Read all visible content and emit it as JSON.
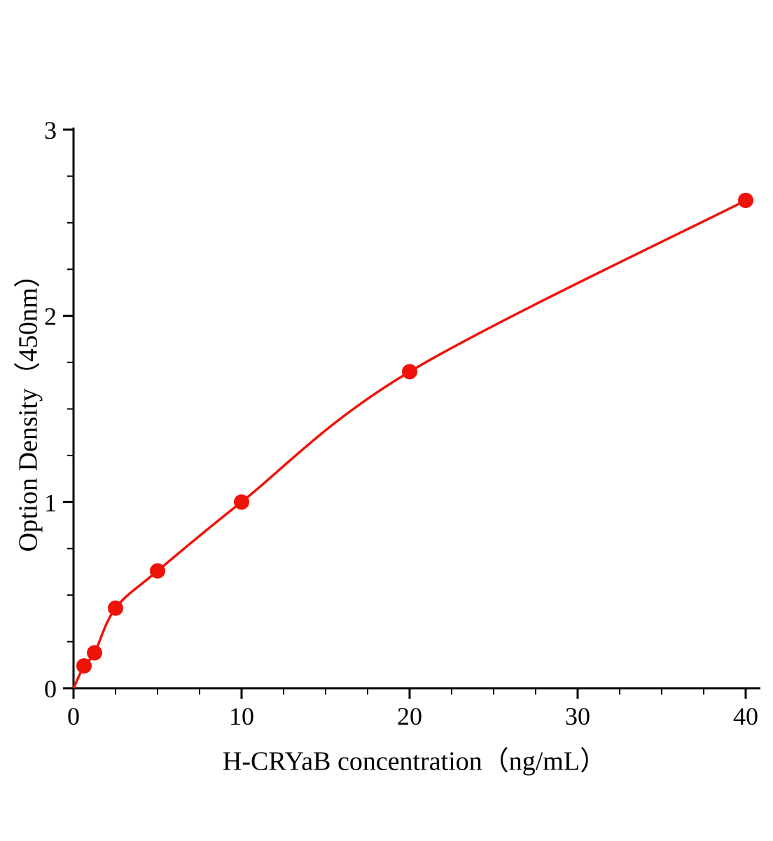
{
  "chart_data": {
    "type": "scatter",
    "title": "",
    "xlabel": "H-CRYaB concentration（ng/mL）",
    "ylabel": "Option Density（450nm）",
    "x": [
      0.625,
      1.25,
      2.5,
      5,
      10,
      20,
      40
    ],
    "y": [
      0.12,
      0.19,
      0.43,
      0.63,
      1.0,
      1.7,
      2.62
    ],
    "curve": {
      "type": "smooth-through-points",
      "starts_at_origin": true
    },
    "xlim": [
      0,
      40
    ],
    "ylim": [
      0,
      3
    ],
    "x_ticks": [
      0,
      10,
      20,
      30,
      40
    ],
    "y_ticks": [
      0,
      1,
      2,
      3
    ],
    "x_minor_step": 2.5,
    "y_minor_step": 0.25,
    "marker_color": "#ee1309",
    "line_color": "#ee1309",
    "axis_color": "#000000",
    "grid": false,
    "legend": false
  }
}
